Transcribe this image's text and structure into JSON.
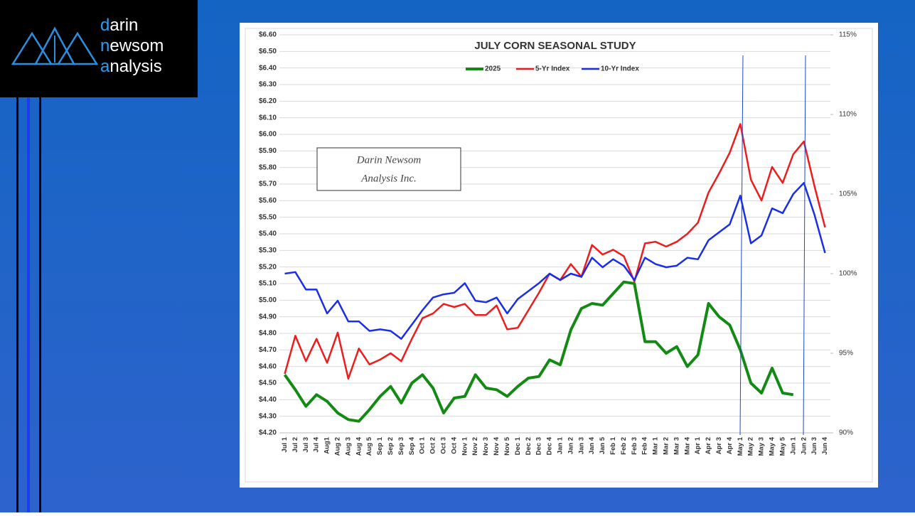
{
  "logo": [
    {
      "initial": "d",
      "rest": "arin"
    },
    {
      "initial": "n",
      "rest": "ewsom"
    },
    {
      "initial": "a",
      "rest": "nalysis"
    }
  ],
  "watermark": [
    "Darin Newsom",
    "Analysis Inc."
  ],
  "chart_data": {
    "type": "line",
    "title": "JULY CORN SEASONAL STUDY",
    "categories": [
      "Jul 1",
      "Jul 2",
      "Jul 3",
      "Jul 4",
      "Aug1",
      "Aug 2",
      "Aug 3",
      "Aug 4",
      "Aug 5",
      "Sep 1",
      "Sep 2",
      "Sep 3",
      "Sep 4",
      "Oct 1",
      "Oct 2",
      "Oct 3",
      "Oct 4",
      "Nov 1",
      "Nov 2",
      "Nov 3",
      "Nov 4",
      "Nov 5",
      "Dec 1",
      "Dec 2",
      "Dec 3",
      "Dec 4",
      "Jan 1",
      "Jan 2",
      "Jan 3",
      "Jan 4",
      "Jan 5",
      "Feb 1",
      "Feb 2",
      "Feb 3",
      "Feb 4",
      "Mar 1",
      "Mar 2",
      "Mar 3",
      "Mar 4",
      "Apr 1",
      "Apr 2",
      "Apr 3",
      "Apr 4",
      "May 1",
      "May 2",
      "May 3",
      "May 4",
      "May 5",
      "Jun 1",
      "Jun 2",
      "Jun 3",
      "Jun 4"
    ],
    "series": [
      {
        "name": "2025",
        "color": "#138a13",
        "width": 4,
        "values": [
          4.55,
          4.46,
          4.36,
          4.43,
          4.39,
          4.32,
          4.28,
          4.27,
          4.34,
          4.42,
          4.48,
          4.38,
          4.5,
          4.55,
          4.47,
          4.32,
          4.41,
          4.42,
          4.55,
          4.47,
          4.46,
          4.42,
          4.48,
          4.53,
          4.54,
          4.64,
          4.61,
          4.82,
          4.95,
          4.98,
          4.97,
          5.04,
          5.11,
          5.1,
          4.75,
          4.75,
          4.68,
          4.72,
          4.6,
          4.67,
          4.98,
          4.9,
          4.85,
          4.7,
          4.5,
          4.44,
          4.59,
          4.44,
          4.43,
          null,
          null,
          null
        ]
      },
      {
        "name": "5-Yr Index",
        "color": "#ee1c1c",
        "width": 2.5,
        "axis": "y2",
        "values": [
          93.7,
          96.1,
          94.5,
          95.9,
          94.4,
          96.3,
          93.4,
          95.3,
          94.3,
          94.6,
          95.0,
          94.5,
          95.9,
          97.2,
          97.5,
          98.1,
          97.9,
          98.1,
          97.4,
          97.4,
          98.0,
          96.5,
          96.6,
          97.7,
          98.8,
          100.0,
          99.6,
          100.6,
          99.8,
          101.8,
          101.2,
          101.5,
          101.1,
          99.5,
          101.9,
          102.0,
          101.7,
          102.0,
          102.5,
          103.2,
          105.1,
          106.3,
          107.6,
          109.4,
          105.9,
          104.6,
          106.7,
          105.7,
          107.5,
          108.3,
          105.5,
          102.9
        ]
      },
      {
        "name": "10-Yr Index",
        "color": "#1a2ee8",
        "width": 2.5,
        "axis": "y2",
        "values": [
          100.0,
          100.1,
          99.0,
          99.0,
          97.5,
          98.3,
          97.0,
          97.0,
          96.4,
          96.5,
          96.4,
          95.9,
          96.8,
          97.7,
          98.5,
          98.7,
          98.8,
          99.4,
          98.3,
          98.2,
          98.5,
          97.5,
          98.4,
          98.9,
          99.4,
          100.0,
          99.6,
          100.0,
          99.8,
          101.0,
          100.4,
          100.9,
          100.5,
          99.6,
          101.0,
          100.6,
          100.4,
          100.5,
          101.0,
          100.9,
          102.1,
          102.6,
          103.1,
          104.9,
          101.9,
          102.4,
          104.1,
          103.8,
          105.0,
          105.7,
          103.7,
          101.3
        ]
      }
    ],
    "ylim": [
      4.2,
      6.6
    ],
    "yticks": [
      {
        "value": 4.2,
        "label": "$4.20"
      },
      {
        "value": 4.3,
        "label": "$4.30"
      },
      {
        "value": 4.4,
        "label": "$4.40"
      },
      {
        "value": 4.5,
        "label": "$4.50"
      },
      {
        "value": 4.6,
        "label": "$4.60"
      },
      {
        "value": 4.7,
        "label": "$4.70"
      },
      {
        "value": 4.8,
        "label": "$4.80"
      },
      {
        "value": 4.9,
        "label": "$4.90"
      },
      {
        "value": 5.0,
        "label": "$5.00"
      },
      {
        "value": 5.1,
        "label": "$5.10"
      },
      {
        "value": 5.2,
        "label": "$5.20"
      },
      {
        "value": 5.3,
        "label": "$5.30"
      },
      {
        "value": 5.4,
        "label": "$5.40"
      },
      {
        "value": 5.5,
        "label": "$5.50"
      },
      {
        "value": 5.6,
        "label": "$5.60"
      },
      {
        "value": 5.7,
        "label": "$5.70"
      },
      {
        "value": 5.8,
        "label": "$5.80"
      },
      {
        "value": 5.9,
        "label": "$5.90"
      },
      {
        "value": 6.0,
        "label": "$6.00"
      },
      {
        "value": 6.1,
        "label": "$6.10"
      },
      {
        "value": 6.2,
        "label": "$6.20"
      },
      {
        "value": 6.3,
        "label": "$6.30"
      },
      {
        "value": 6.4,
        "label": "$6.40"
      },
      {
        "value": 6.5,
        "label": "$6.50"
      },
      {
        "value": 6.6,
        "label": "$6.60"
      }
    ],
    "y2lim": [
      90,
      115
    ],
    "y2ticks": [
      {
        "value": 90,
        "label": "90%"
      },
      {
        "value": 95,
        "label": "95%"
      },
      {
        "value": 100,
        "label": "100%"
      },
      {
        "value": 105,
        "label": "105%"
      },
      {
        "value": 110,
        "label": "110%"
      },
      {
        "value": 115,
        "label": "115%"
      }
    ],
    "grid": true,
    "legend": "top"
  }
}
